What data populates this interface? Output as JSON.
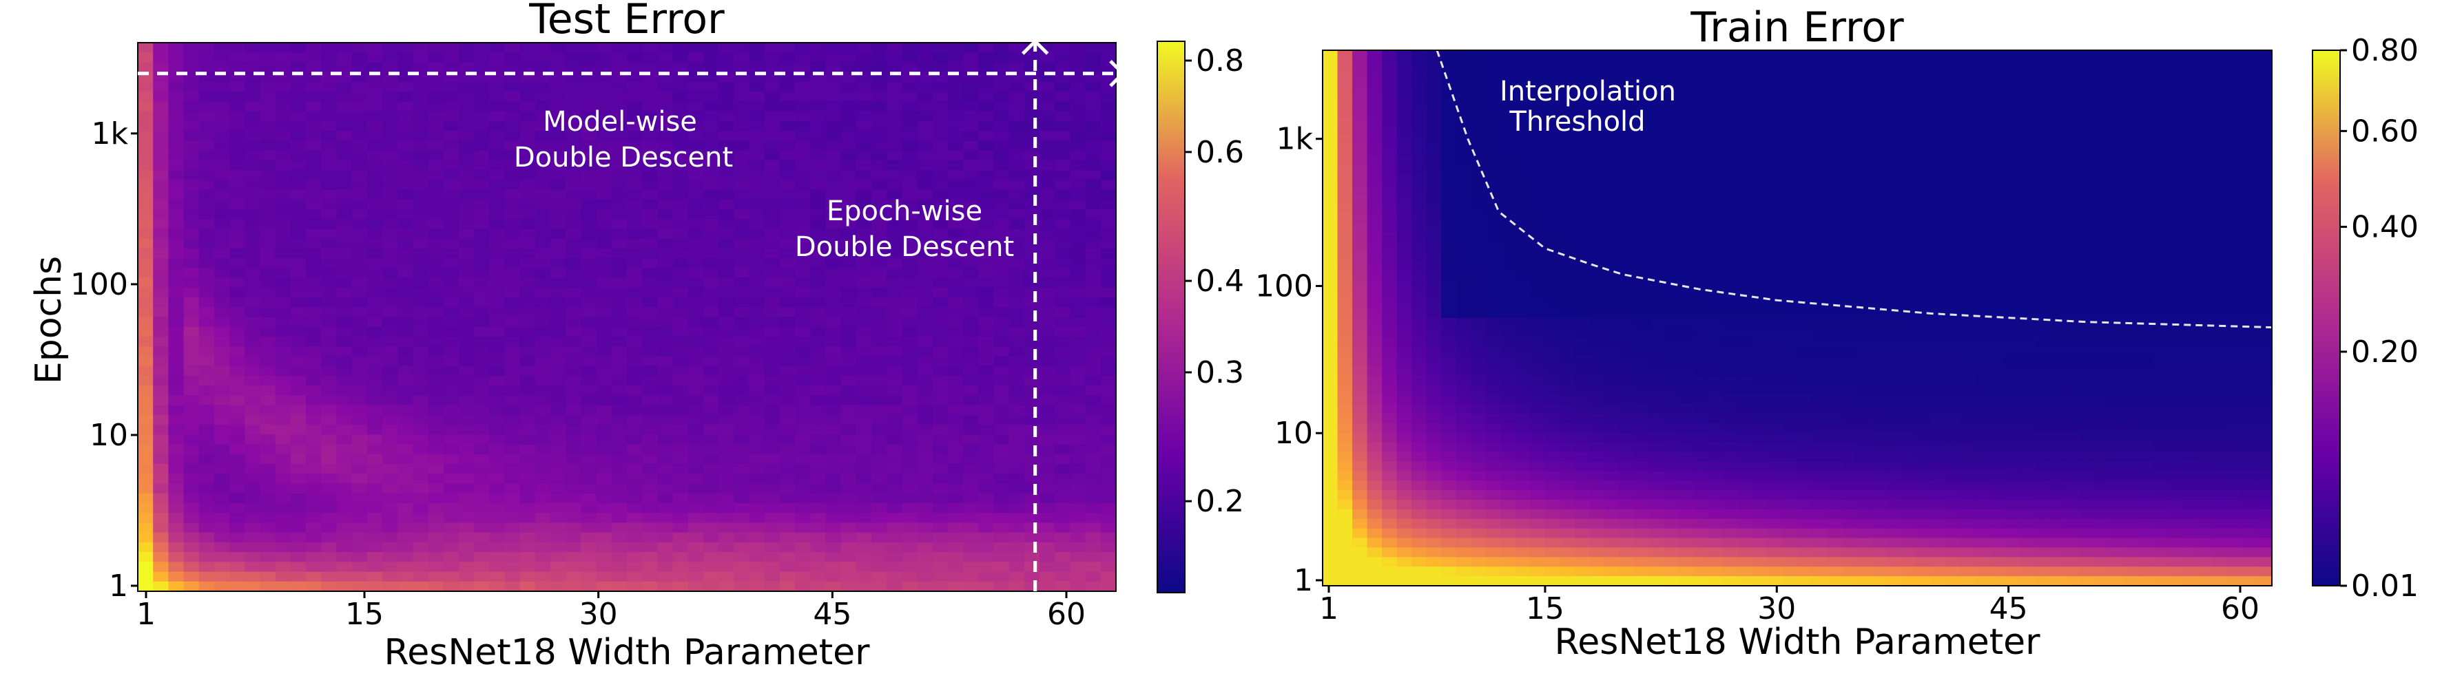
{
  "chart_data": [
    {
      "type": "heatmap",
      "title": "Test Error",
      "xlabel": "ResNet18 Width Parameter",
      "ylabel": "Epochs",
      "x_range": [
        1,
        64
      ],
      "y_scale": "log",
      "y_range_epochs": [
        1,
        4000
      ],
      "xticks": [
        1,
        15,
        30,
        45,
        60
      ],
      "xtick_labels": [
        "1",
        "15",
        "30",
        "45",
        "60"
      ],
      "yticks": [
        1,
        10,
        100,
        1000
      ],
      "ytick_labels": [
        "1",
        "10",
        "100",
        "1k"
      ],
      "colormap": "plasma",
      "colorbar": {
        "range": [
          0.15,
          0.85
        ],
        "scale": "log",
        "ticks": [
          0.2,
          0.3,
          0.4,
          0.6,
          0.8
        ],
        "tick_labels": [
          "0.2",
          "0.3",
          "0.4",
          "0.6",
          "0.8"
        ]
      },
      "annotations": [
        {
          "text_lines": [
            "Model-wise",
            "Double Descent"
          ],
          "arrow": "horizontal",
          "at_epochs": 2500
        },
        {
          "text_lines": [
            "Epoch-wise",
            "Double Descent"
          ],
          "arrow": "vertical",
          "at_width": 58
        }
      ]
    },
    {
      "type": "heatmap",
      "title": "Train Error",
      "xlabel": "ResNet18 Width Parameter",
      "ylabel": "",
      "x_range": [
        1,
        64
      ],
      "y_scale": "log",
      "y_range_epochs": [
        1,
        4000
      ],
      "xticks": [
        1,
        15,
        30,
        45,
        60
      ],
      "xtick_labels": [
        "1",
        "15",
        "30",
        "45",
        "60"
      ],
      "yticks": [
        1,
        10,
        100,
        1000
      ],
      "ytick_labels": [
        "1",
        "10",
        "100",
        "1k"
      ],
      "colormap": "plasma",
      "colorbar": {
        "range": [
          0.01,
          0.8
        ],
        "scale": "sqrt",
        "ticks": [
          0.01,
          0.2,
          0.4,
          0.6,
          0.8
        ],
        "tick_labels": [
          "0.01",
          "0.20",
          "0.40",
          "0.60",
          "0.80"
        ]
      },
      "annotations": [
        {
          "text_lines": [
            "Interpolation",
            "Threshold"
          ],
          "curve": "dashed"
        }
      ],
      "interpolation_threshold": {
        "widths": [
          8,
          10,
          12,
          15,
          18,
          20,
          25,
          30,
          40,
          50,
          63
        ],
        "epochs": [
          4000,
          1000,
          320,
          180,
          140,
          120,
          95,
          80,
          65,
          57,
          52
        ]
      }
    }
  ]
}
